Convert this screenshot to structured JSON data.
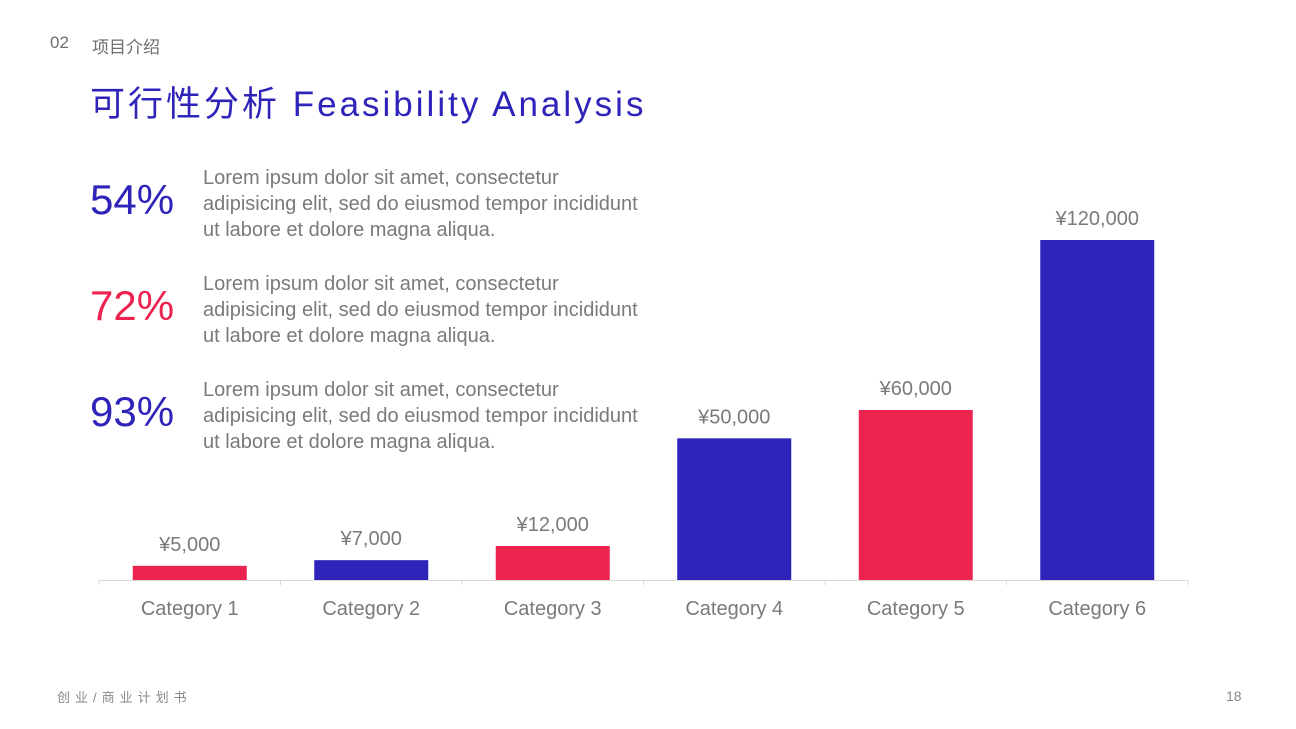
{
  "header": {
    "section_number": "02",
    "section_name": "项目介绍",
    "title": "可行性分析 Feasibility Analysis"
  },
  "stats": [
    {
      "value": "54%",
      "color": "#2f24b9",
      "text": "Lorem ipsum dolor sit amet, consectetur adipisicing elit, sed do eiusmod tempor incididunt ut labore et dolore magna aliqua."
    },
    {
      "value": "72%",
      "color": "#ec234f",
      "text": "Lorem ipsum dolor sit amet, consectetur adipisicing elit, sed do eiusmod tempor incididunt ut labore et dolore magna aliqua."
    },
    {
      "value": "93%",
      "color": "#2f24b9",
      "text": "Lorem ipsum dolor sit amet, consectetur adipisicing elit, sed do eiusmod tempor incididunt ut labore et dolore magna aliqua."
    }
  ],
  "chart_data": {
    "type": "bar",
    "title": "",
    "xlabel": "",
    "ylabel": "",
    "categories": [
      "Category 1",
      "Category 2",
      "Category 3",
      "Category 4",
      "Category 5",
      "Category 6"
    ],
    "values": [
      5000,
      7000,
      12000,
      50000,
      60000,
      120000
    ],
    "data_labels": [
      "¥5,000",
      "¥7,000",
      "¥12,000",
      "¥50,000",
      "¥60,000",
      "¥120,000"
    ],
    "bar_colors": [
      "#ec234f",
      "#2f24b9",
      "#ec234f",
      "#2f24b9",
      "#ec234f",
      "#2f24b9"
    ],
    "ylim": [
      0,
      120000
    ],
    "grid": false,
    "legend": "none"
  },
  "footer": {
    "left_text": "创业/商业计划书",
    "page_number": "18"
  }
}
